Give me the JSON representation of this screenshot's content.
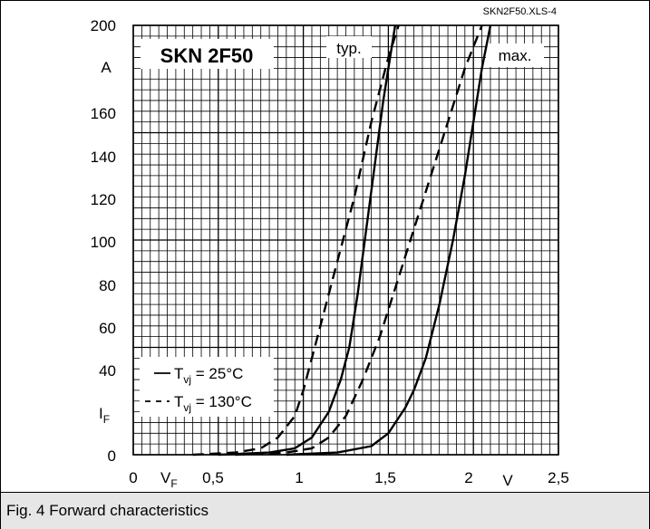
{
  "chart_data": {
    "type": "line",
    "source_note": "SKN2F50.XLS-4",
    "device": "SKN 2F50",
    "x_label": "V",
    "x_symbol": "V",
    "x_sub": "F",
    "y_label": "A",
    "y_symbol": "I",
    "y_sub": "F",
    "xlim": [
      0,
      2.5
    ],
    "ylim": [
      0,
      200
    ],
    "x_ticks": [
      "0",
      "0,5",
      "1",
      "1,5",
      "2",
      "2,5"
    ],
    "y_ticks": [
      "200",
      "160",
      "140",
      "120",
      "100",
      "80",
      "60",
      "40",
      "0"
    ],
    "grid": true,
    "curve_labels": {
      "typ": "typ.",
      "max": "max."
    },
    "legend": [
      {
        "symbol": "—",
        "text_prefix": "T",
        "text_sub": "vj",
        "text_suffix": " =  25°C",
        "style": "solid"
      },
      {
        "symbol": "- -",
        "text_prefix": "T",
        "text_sub": "vj",
        "text_suffix": " = 130°C",
        "style": "dashed"
      }
    ],
    "series": [
      {
        "group": "typ",
        "style": "dashed",
        "points": [
          [
            0.35,
            0
          ],
          [
            0.6,
            1
          ],
          [
            0.75,
            3
          ],
          [
            0.85,
            8
          ],
          [
            0.95,
            18
          ],
          [
            1.0,
            30
          ],
          [
            1.05,
            45
          ],
          [
            1.1,
            60
          ],
          [
            1.2,
            90
          ],
          [
            1.3,
            120
          ],
          [
            1.4,
            155
          ],
          [
            1.5,
            185
          ],
          [
            1.56,
            200
          ]
        ]
      },
      {
        "group": "typ",
        "style": "solid",
        "points": [
          [
            0.5,
            0
          ],
          [
            0.8,
            1
          ],
          [
            0.95,
            3
          ],
          [
            1.05,
            8
          ],
          [
            1.15,
            20
          ],
          [
            1.22,
            35
          ],
          [
            1.27,
            50
          ],
          [
            1.32,
            75
          ],
          [
            1.37,
            105
          ],
          [
            1.42,
            135
          ],
          [
            1.47,
            165
          ],
          [
            1.5,
            180
          ],
          [
            1.54,
            200
          ]
        ]
      },
      {
        "group": "max",
        "style": "dashed",
        "points": [
          [
            0.6,
            0
          ],
          [
            0.9,
            1
          ],
          [
            1.05,
            3
          ],
          [
            1.15,
            8
          ],
          [
            1.25,
            18
          ],
          [
            1.35,
            35
          ],
          [
            1.45,
            55
          ],
          [
            1.55,
            80
          ],
          [
            1.65,
            105
          ],
          [
            1.75,
            130
          ],
          [
            1.85,
            155
          ],
          [
            1.95,
            180
          ],
          [
            2.05,
            200
          ]
        ]
      },
      {
        "group": "max",
        "style": "solid",
        "points": [
          [
            0.9,
            0
          ],
          [
            1.2,
            1
          ],
          [
            1.4,
            4
          ],
          [
            1.5,
            10
          ],
          [
            1.6,
            22
          ],
          [
            1.65,
            30
          ],
          [
            1.72,
            45
          ],
          [
            1.8,
            70
          ],
          [
            1.88,
            100
          ],
          [
            1.95,
            130
          ],
          [
            2.0,
            155
          ],
          [
            2.05,
            180
          ],
          [
            2.1,
            200
          ]
        ]
      }
    ]
  },
  "caption": "Fig. 4 Forward characteristics"
}
